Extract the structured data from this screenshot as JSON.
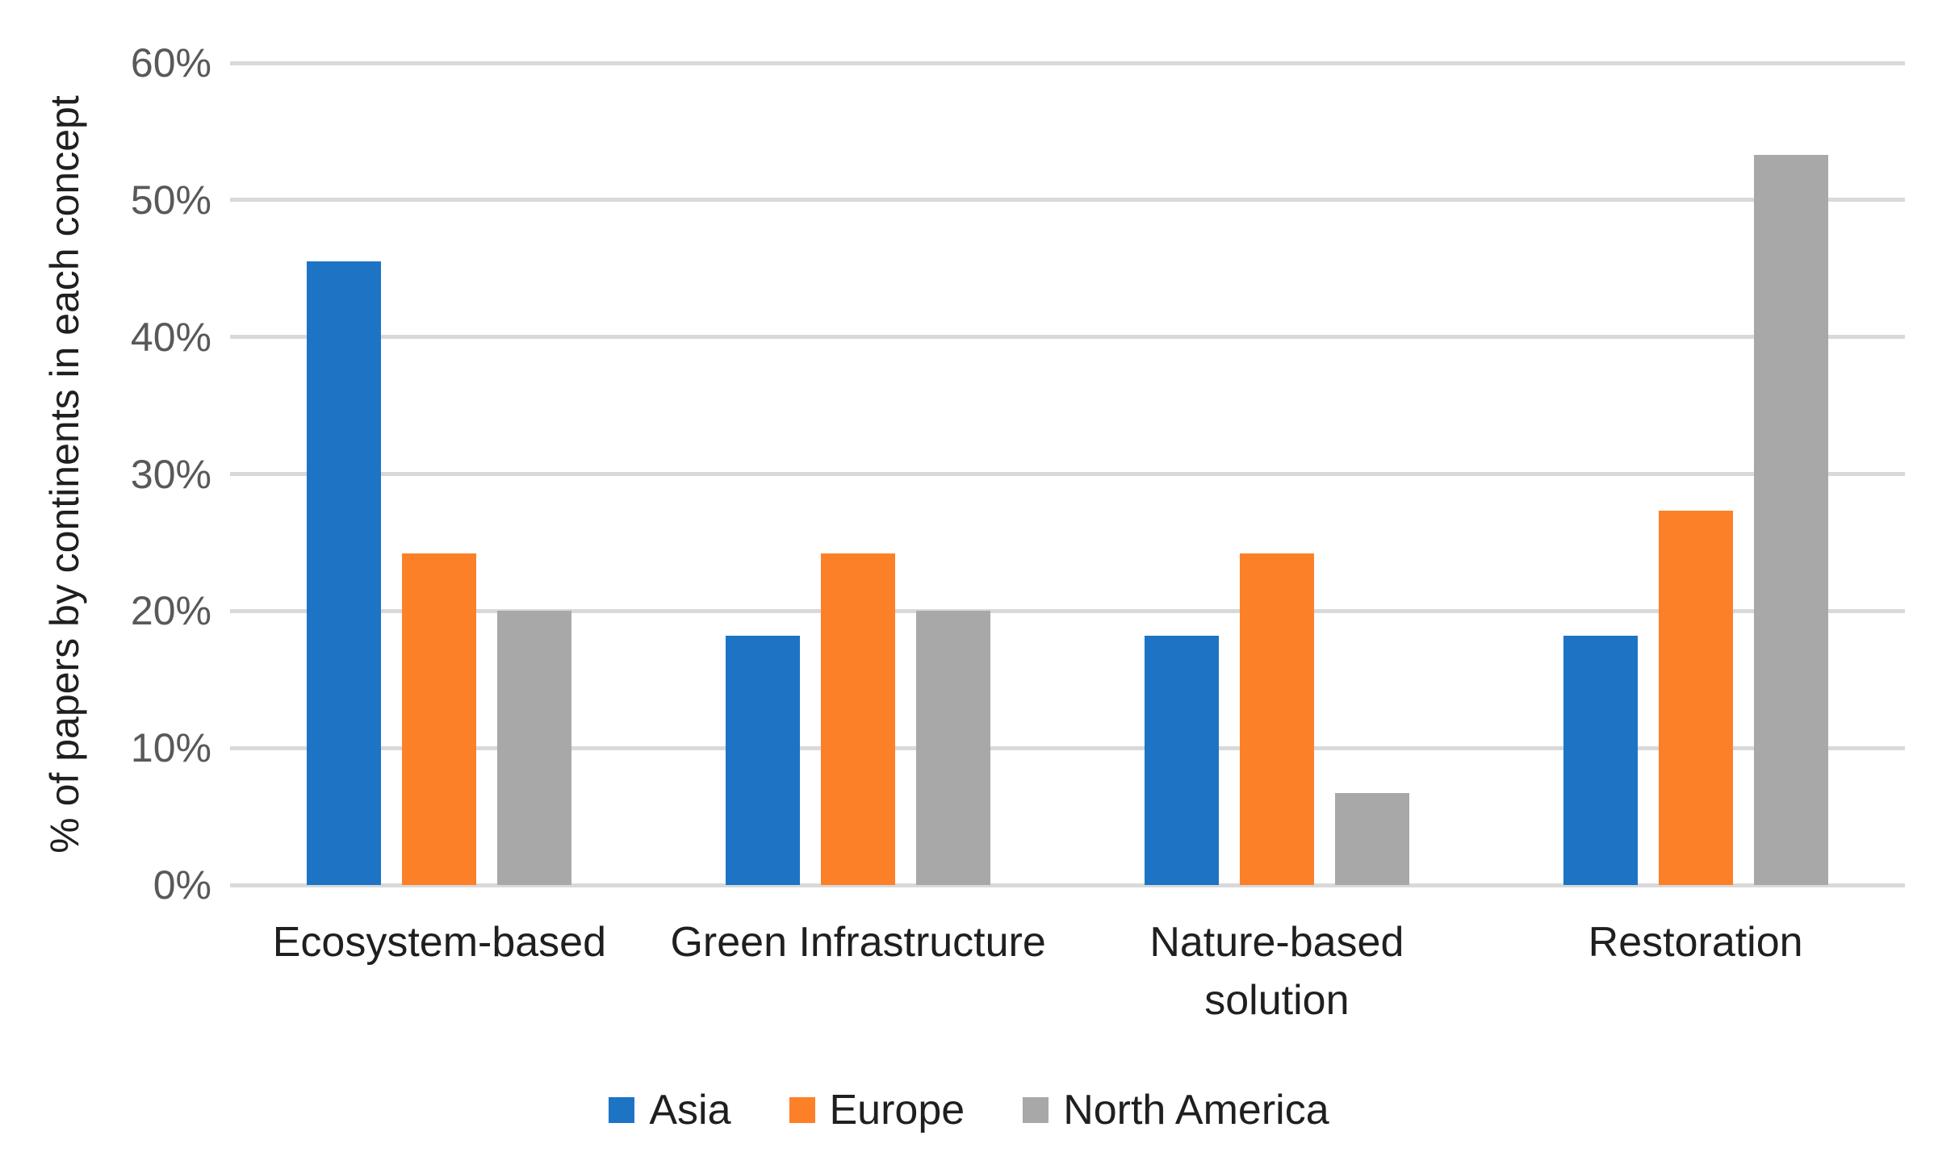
{
  "chart_data": {
    "type": "bar",
    "title": "",
    "categories": [
      "Ecosystem-based",
      "Green Infrastructure",
      "Nature-based\nsolution",
      "Restoration"
    ],
    "series": [
      {
        "name": "Asia",
        "color": "#1d74c4",
        "values": [
          45.5,
          18.2,
          18.2,
          18.2
        ]
      },
      {
        "name": "Europe",
        "color": "#fc8028",
        "values": [
          24.2,
          24.2,
          24.2,
          27.3
        ]
      },
      {
        "name": "North America",
        "color": "#a8a8a8",
        "values": [
          20.0,
          20.0,
          6.7,
          53.3
        ]
      }
    ],
    "xlabel": "",
    "ylabel": "% of papers by continents in each concept",
    "ylim": [
      0,
      60
    ],
    "yticks": [
      0,
      10,
      20,
      30,
      40,
      50,
      60
    ],
    "ytick_labels": [
      "0%",
      "10%",
      "20%",
      "30%",
      "40%",
      "50%",
      "60%"
    ],
    "grid": true,
    "legend_position": "bottom"
  },
  "style": {
    "gridline_color": "#d9d9d9",
    "tick_text_color": "#595959",
    "label_text_color": "#1f1f1f",
    "background": "#ffffff"
  }
}
